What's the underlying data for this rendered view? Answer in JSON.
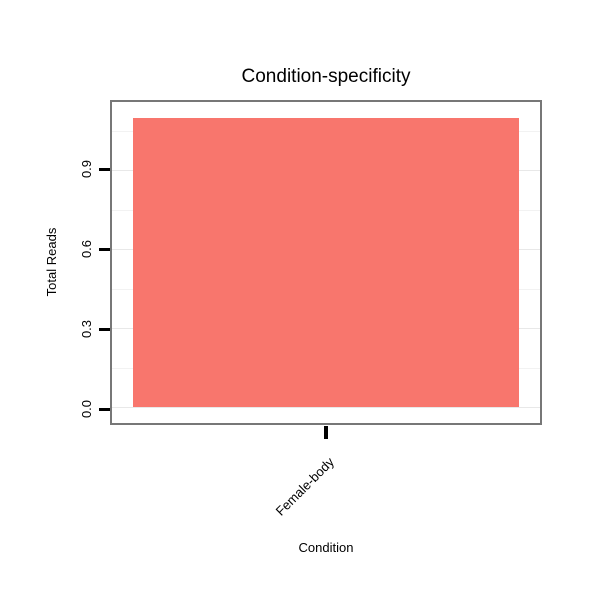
{
  "chart_data": {
    "type": "bar",
    "title": "Condition-specificity",
    "xlabel": "Condition",
    "ylabel": "Total Reads",
    "categories": [
      "Female-body"
    ],
    "values": [
      1.1
    ],
    "ylim": [
      -0.06,
      1.16
    ],
    "yticks": [
      0,
      0.3,
      0.6,
      0.9
    ],
    "ytick_labels": [
      "0.0",
      "0.3",
      "0.6",
      "0.9"
    ],
    "grid_major": [
      0,
      0.3,
      0.6,
      0.9
    ],
    "grid_minor": [
      0.15,
      0.45,
      0.75,
      1.05
    ],
    "bar_width_frac": 0.9,
    "legend": "none",
    "grid": "on"
  },
  "style": {
    "bar_color": "#F8766D",
    "panel_border_color": "#777777",
    "grid_major_color": "#E8E8E8",
    "grid_minor_color": "#F2F2F2",
    "tick_color": "#000000",
    "text_color": "#000000",
    "background_color": "#FFFFFF"
  }
}
